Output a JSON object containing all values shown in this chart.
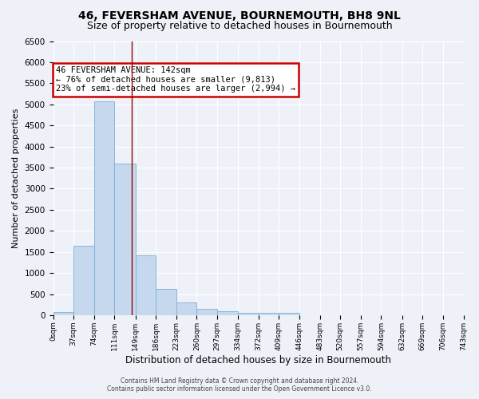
{
  "title1": "46, FEVERSHAM AVENUE, BOURNEMOUTH, BH8 9NL",
  "title2": "Size of property relative to detached houses in Bournemouth",
  "xlabel": "Distribution of detached houses by size in Bournemouth",
  "ylabel": "Number of detached properties",
  "bin_edges": [
    0,
    37,
    74,
    111,
    149,
    186,
    223,
    260,
    297,
    334,
    372,
    409,
    446,
    483,
    520,
    557,
    594,
    632,
    669,
    706,
    743
  ],
  "bin_heights": [
    75,
    1650,
    5070,
    3590,
    1410,
    620,
    300,
    150,
    90,
    60,
    55,
    55,
    0,
    0,
    0,
    0,
    0,
    0,
    0,
    0
  ],
  "bar_color": "#c5d8ee",
  "bar_edge_color": "#7bafd4",
  "property_line_x": 142,
  "property_line_color": "#990000",
  "annotation_text": "46 FEVERSHAM AVENUE: 142sqm\n← 76% of detached houses are smaller (9,813)\n23% of semi-detached houses are larger (2,994) →",
  "annotation_box_color": "#ffffff",
  "annotation_border_color": "#cc0000",
  "ylim": [
    0,
    6500
  ],
  "tick_labels": [
    "0sqm",
    "37sqm",
    "74sqm",
    "111sqm",
    "149sqm",
    "186sqm",
    "223sqm",
    "260sqm",
    "297sqm",
    "334sqm",
    "372sqm",
    "409sqm",
    "446sqm",
    "483sqm",
    "520sqm",
    "557sqm",
    "594sqm",
    "632sqm",
    "669sqm",
    "706sqm",
    "743sqm"
  ],
  "footer1": "Contains HM Land Registry data © Crown copyright and database right 2024.",
  "footer2": "Contains public sector information licensed under the Open Government Licence v3.0.",
  "bg_color": "#eef2f8",
  "grid_color": "#ffffff",
  "title1_fontsize": 10,
  "title2_fontsize": 9
}
